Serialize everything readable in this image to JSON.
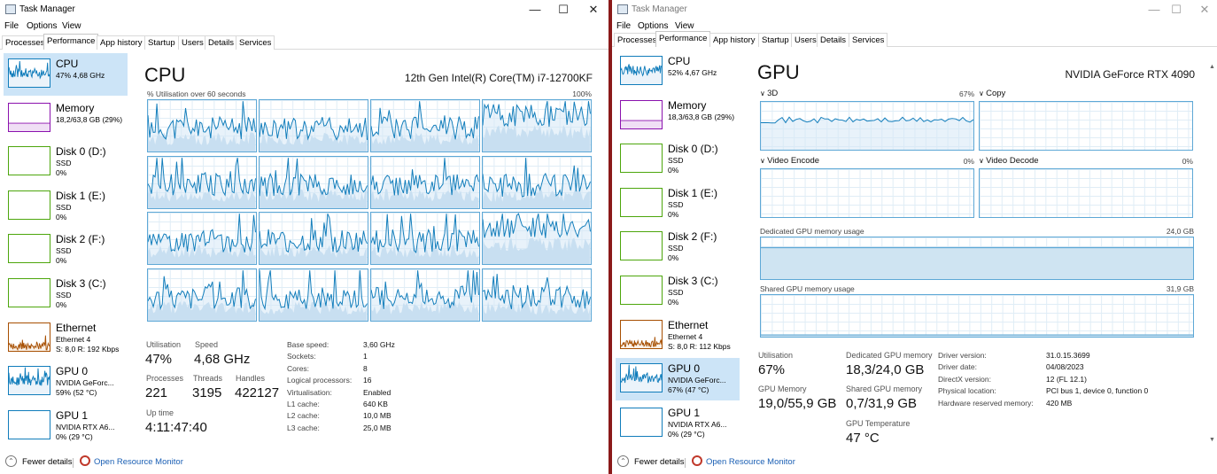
{
  "win1": {
    "title": "Task Manager",
    "menu": [
      "File",
      "Options",
      "View"
    ],
    "tabs": [
      "Processes",
      "Performance",
      "App history",
      "Startup",
      "Users",
      "Details",
      "Services"
    ],
    "active_tab": "Performance",
    "sidebar": [
      {
        "name": "CPU",
        "s1": "47%  4,68 GHz",
        "s2": "",
        "color": "#117dbb",
        "selected": true
      },
      {
        "name": "Memory",
        "s1": "18,2/63,8 GB (29%)",
        "s2": "",
        "color": "#8b12ae",
        "selected": false
      },
      {
        "name": "Disk 0 (D:)",
        "s1": "SSD",
        "s2": "0%",
        "color": "#4da60c",
        "selected": false
      },
      {
        "name": "Disk 1 (E:)",
        "s1": "SSD",
        "s2": "0%",
        "color": "#4da60c",
        "selected": false
      },
      {
        "name": "Disk 2 (F:)",
        "s1": "SSD",
        "s2": "0%",
        "color": "#4da60c",
        "selected": false
      },
      {
        "name": "Disk 3 (C:)",
        "s1": "SSD",
        "s2": "0%",
        "color": "#4da60c",
        "selected": false
      },
      {
        "name": "Ethernet",
        "s1": "Ethernet 4",
        "s2": "S: 8,0  R: 192 Kbps",
        "color": "#a74f01",
        "selected": false
      },
      {
        "name": "GPU 0",
        "s1": "NVIDIA GeForc...",
        "s2": "59%  (52 °C)",
        "color": "#117dbb",
        "selected": false
      },
      {
        "name": "GPU 1",
        "s1": "NVIDIA RTX A6...",
        "s2": "0%  (29 °C)",
        "color": "#117dbb",
        "selected": false
      }
    ],
    "main": {
      "title": "CPU",
      "subtitle": "12th Gen Intel(R) Core(TM) i7-12700KF",
      "graph_label": "% Utilisation over 60 seconds",
      "graph_max": "100%",
      "stats": {
        "utilisation_label": "Utilisation",
        "utilisation": "47%",
        "speed_label": "Speed",
        "speed": "4,68 GHz",
        "processes_label": "Processes",
        "processes": "221",
        "threads_label": "Threads",
        "threads": "3195",
        "handles_label": "Handles",
        "handles": "422127",
        "uptime_label": "Up time",
        "uptime": "4:11:47:40"
      },
      "details": [
        {
          "k": "Base speed:",
          "v": "3,60 GHz"
        },
        {
          "k": "Sockets:",
          "v": "1"
        },
        {
          "k": "Cores:",
          "v": "8"
        },
        {
          "k": "Logical processors:",
          "v": "16"
        },
        {
          "k": "Virtualisation:",
          "v": "Enabled"
        },
        {
          "k": "L1 cache:",
          "v": "640 KB"
        },
        {
          "k": "L2 cache:",
          "v": "10,0 MB"
        },
        {
          "k": "L3 cache:",
          "v": "25,0 MB"
        }
      ]
    },
    "bottom": {
      "fewer": "Fewer details",
      "monitor": "Open Resource Monitor"
    }
  },
  "win2": {
    "title": "Task Manager",
    "menu": [
      "File",
      "Options",
      "View"
    ],
    "tabs": [
      "Processes",
      "Performance",
      "App history",
      "Startup",
      "Users",
      "Details",
      "Services"
    ],
    "active_tab": "Performance",
    "sidebar": [
      {
        "name": "CPU",
        "s1": "52%  4,67 GHz",
        "s2": "",
        "color": "#117dbb",
        "selected": false
      },
      {
        "name": "Memory",
        "s1": "18,3/63,8 GB (29%)",
        "s2": "",
        "color": "#8b12ae",
        "selected": false
      },
      {
        "name": "Disk 0 (D:)",
        "s1": "SSD",
        "s2": "0%",
        "color": "#4da60c",
        "selected": false
      },
      {
        "name": "Disk 1 (E:)",
        "s1": "SSD",
        "s2": "0%",
        "color": "#4da60c",
        "selected": false
      },
      {
        "name": "Disk 2 (F:)",
        "s1": "SSD",
        "s2": "0%",
        "color": "#4da60c",
        "selected": false
      },
      {
        "name": "Disk 3 (C:)",
        "s1": "SSD",
        "s2": "0%",
        "color": "#4da60c",
        "selected": false
      },
      {
        "name": "Ethernet",
        "s1": "Ethernet 4",
        "s2": "S: 8,0  R: 112 Kbps",
        "color": "#a74f01",
        "selected": false
      },
      {
        "name": "GPU 0",
        "s1": "NVIDIA GeForc...",
        "s2": "67%  (47 °C)",
        "color": "#117dbb",
        "selected": true
      },
      {
        "name": "GPU 1",
        "s1": "NVIDIA RTX A6...",
        "s2": "0%  (29 °C)",
        "color": "#117dbb",
        "selected": false
      }
    ],
    "main": {
      "title": "GPU",
      "subtitle": "NVIDIA GeForce RTX 4090",
      "engines": [
        {
          "name": "3D",
          "pct": "67%"
        },
        {
          "name": "Copy",
          "pct": ""
        },
        {
          "name": "Video Encode",
          "pct": "0%"
        },
        {
          "name": "Video Decode",
          "pct": "0%"
        }
      ],
      "dedicated_label": "Dedicated GPU memory usage",
      "dedicated_max": "24,0 GB",
      "shared_label": "Shared GPU memory usage",
      "shared_max": "31,9 GB",
      "stats": {
        "utilisation_label": "Utilisation",
        "utilisation": "67%",
        "dedicated_label": "Dedicated GPU memory",
        "dedicated": "18,3/24,0 GB",
        "gpumem_label": "GPU Memory",
        "gpumem": "19,0/55,9 GB",
        "shared_label": "Shared GPU memory",
        "shared": "0,7/31,9 GB",
        "temp_label": "GPU Temperature",
        "temp": "47 °C"
      },
      "details": [
        {
          "k": "Driver version:",
          "v": "31.0.15.3699"
        },
        {
          "k": "Driver date:",
          "v": "04/08/2023"
        },
        {
          "k": "DirectX version:",
          "v": "12 (FL 12.1)"
        },
        {
          "k": "Physical location:",
          "v": "PCI bus 1, device 0, function 0"
        },
        {
          "k": "Hardware reserved memory:",
          "v": "420 MB"
        }
      ]
    },
    "bottom": {
      "fewer": "Fewer details",
      "monitor": "Open Resource Monitor"
    }
  }
}
